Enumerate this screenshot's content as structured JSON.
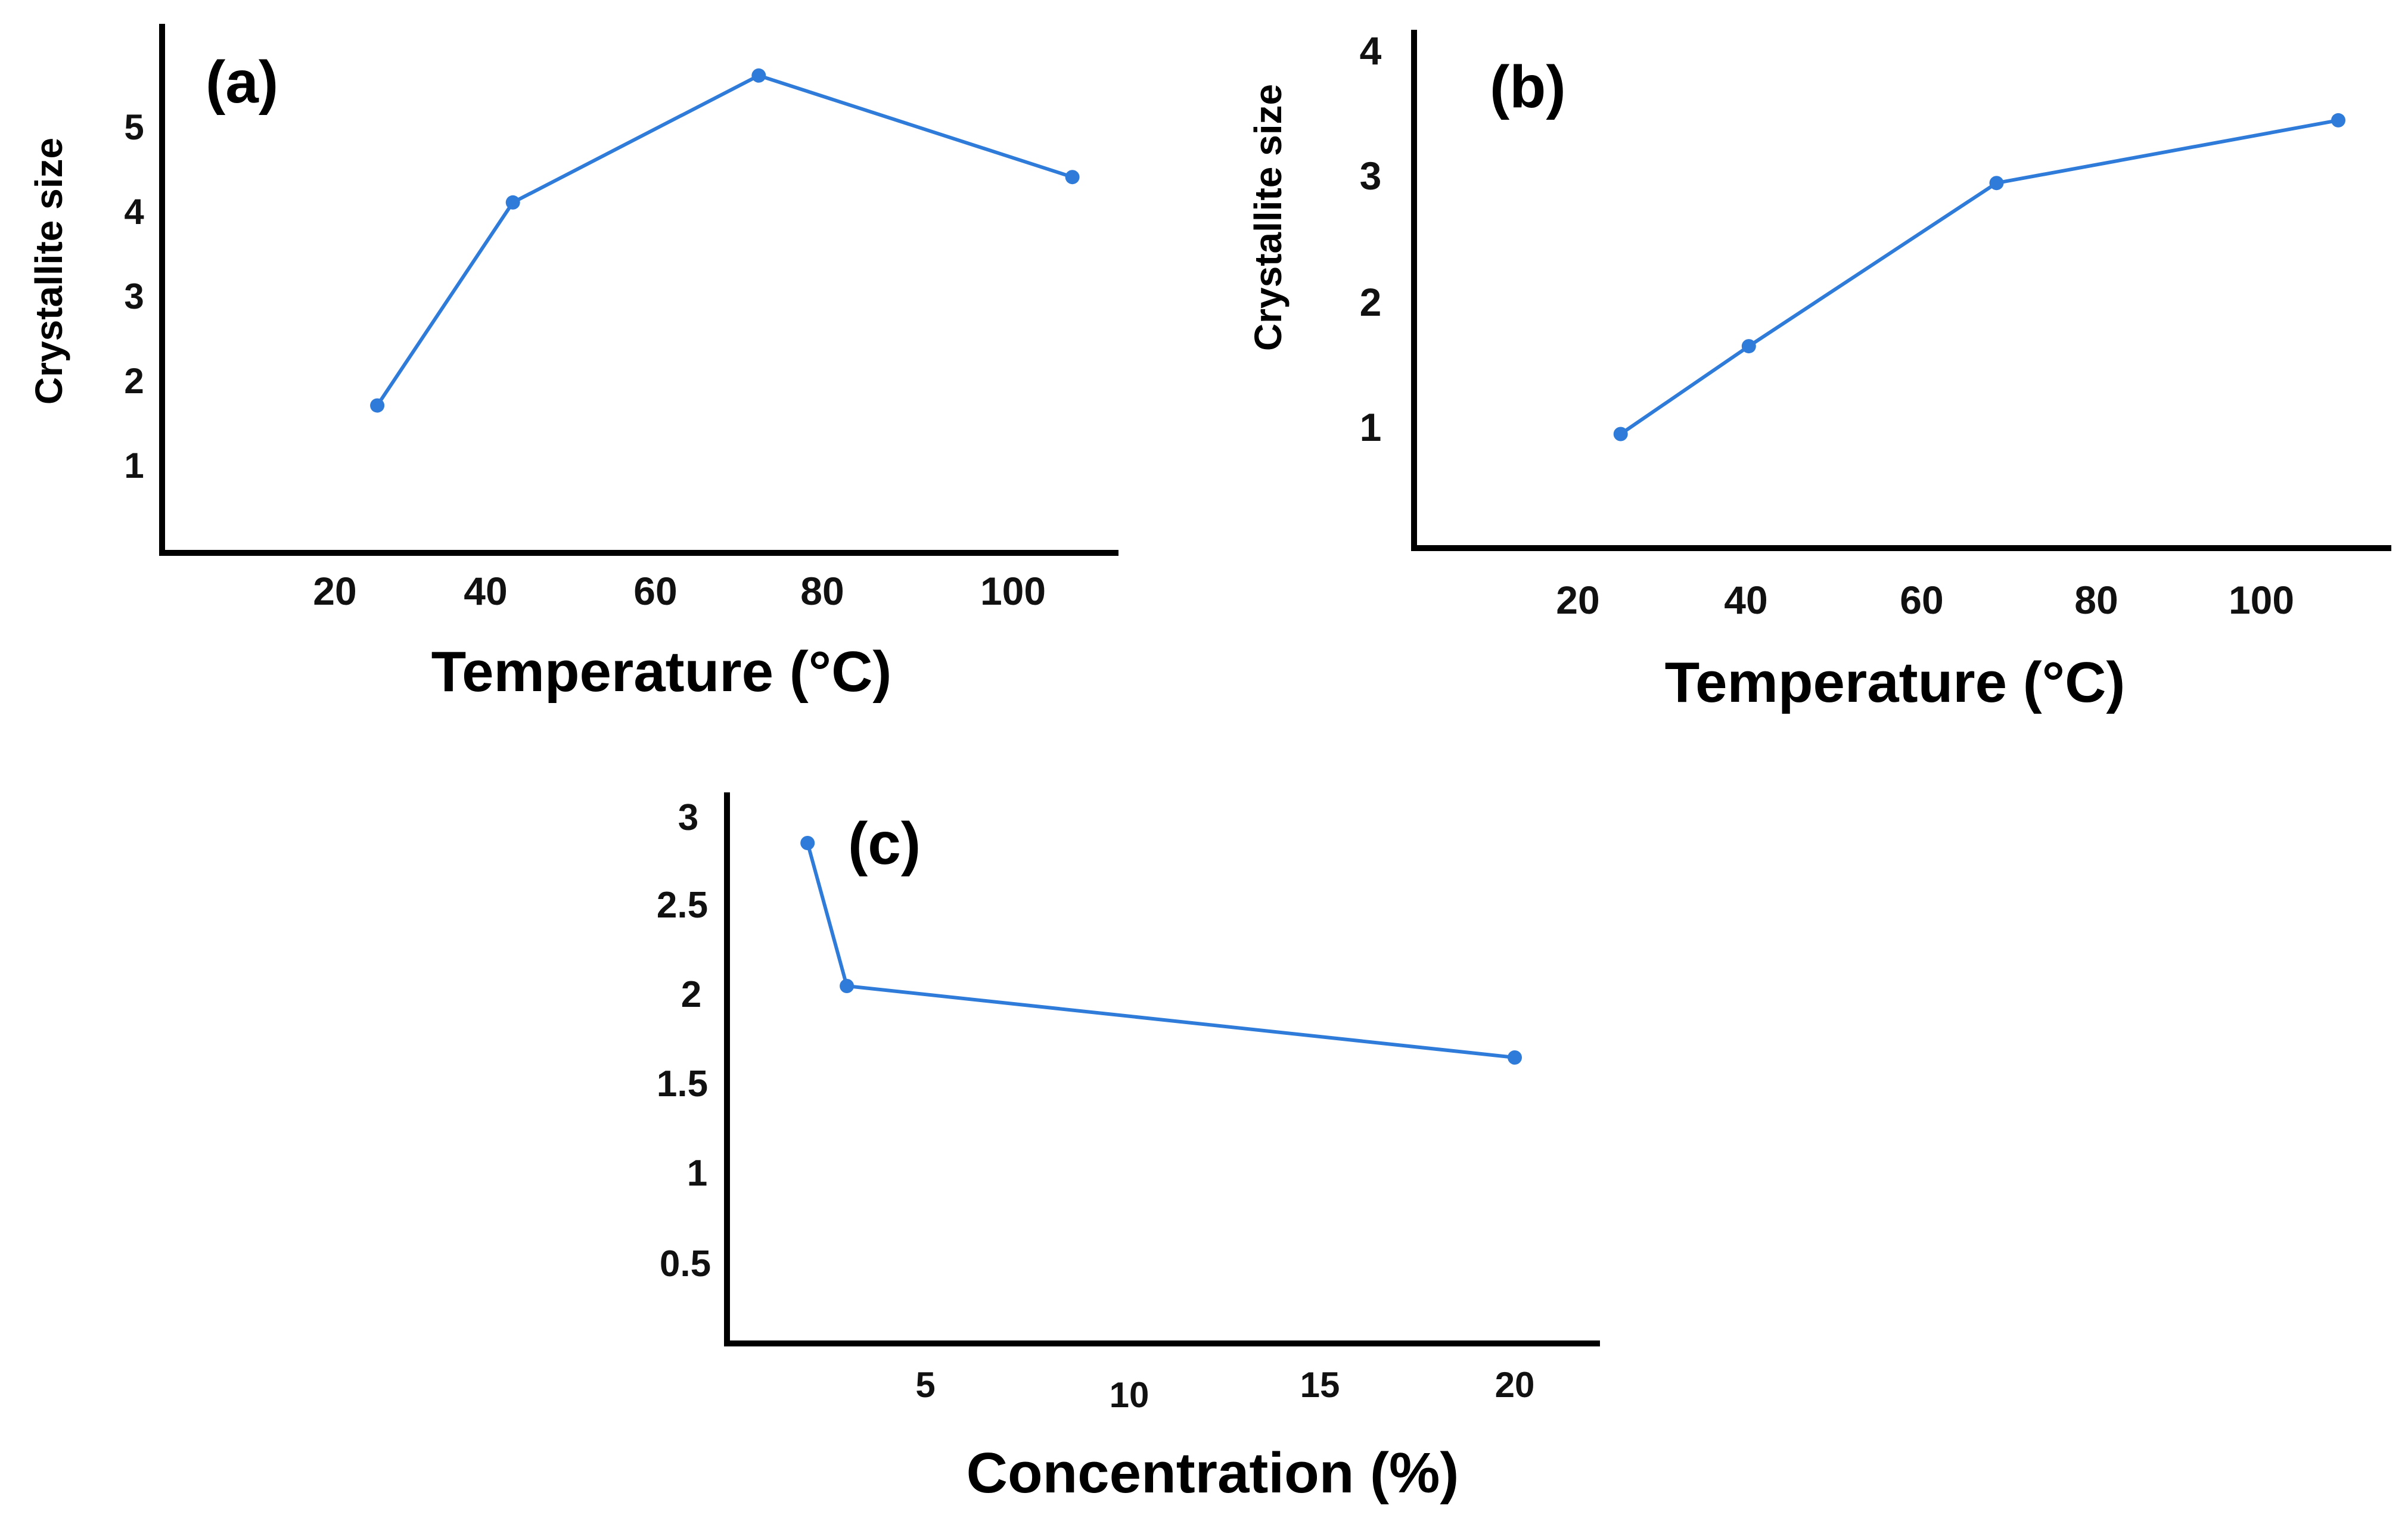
{
  "colors": {
    "series": "#2f7bd9",
    "axis": "#000000",
    "background": "#ffffff"
  },
  "chart_data": [
    {
      "panel": "(a)",
      "type": "line",
      "xlabel": "Temperature (°C)",
      "ylabel": "Crystallite size",
      "xticks": [
        "20",
        "40",
        "60",
        "80",
        "100"
      ],
      "yticks": [
        "1",
        "2",
        "3",
        "4",
        "5"
      ],
      "series": [
        {
          "x": [
            25,
            41,
            70,
            107
          ],
          "y": [
            1.7,
            4.1,
            5.6,
            4.4
          ]
        }
      ]
    },
    {
      "panel": "(b)",
      "type": "line",
      "xlabel": "Temperature (°C)",
      "ylabel": "Crystallite size",
      "xticks": [
        "20",
        "40",
        "60",
        "80",
        "100"
      ],
      "yticks": [
        "1",
        "2",
        "3",
        "4"
      ],
      "series": [
        {
          "x": [
            25,
            40,
            69,
            109
          ],
          "y": [
            0.95,
            1.65,
            2.95,
            3.45
          ]
        }
      ]
    },
    {
      "panel": "(c)",
      "type": "line",
      "xlabel": "Concentration (%)",
      "ylabel": "",
      "xticks": [
        "5",
        "10",
        "15",
        "20"
      ],
      "yticks": [
        "0.5",
        "1",
        "1.5",
        "2",
        "2.5",
        "3"
      ],
      "series": [
        {
          "x": [
            2,
            3,
            20
          ],
          "y": [
            2.85,
            2.05,
            1.65
          ]
        }
      ]
    }
  ]
}
